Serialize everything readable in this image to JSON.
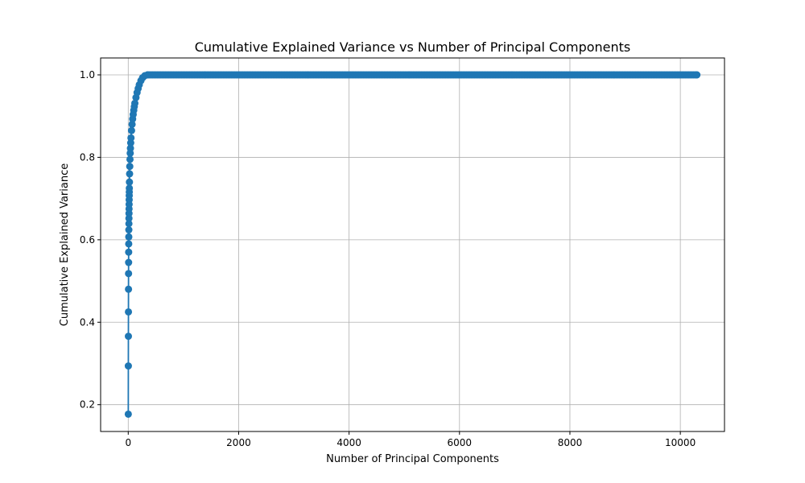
{
  "chart_data": {
    "type": "line",
    "title": "Cumulative Explained Variance vs Number of Principal Components",
    "xlabel": "Number of Principal Components",
    "ylabel": "Cumulative Explained Variance",
    "xlim": [
      -500,
      10800
    ],
    "ylim": [
      0.135,
      1.041
    ],
    "xticks": [
      0,
      2000,
      4000,
      6000,
      8000,
      10000
    ],
    "yticks": [
      0.2,
      0.4,
      0.6,
      0.8,
      1.0
    ],
    "grid": true,
    "legend": "none",
    "series": [
      {
        "color": "#1f77b4",
        "marker": "circle",
        "x": [
          1,
          2,
          3,
          4,
          5,
          6,
          7,
          8,
          9,
          10,
          11,
          12,
          13,
          14,
          15,
          16,
          17,
          18,
          19,
          20,
          22,
          25,
          28,
          32,
          36,
          40,
          45,
          50,
          60,
          70,
          80,
          90,
          100,
          110,
          120,
          140,
          160,
          180,
          200,
          230,
          260,
          300,
          350,
          10300
        ],
        "y": [
          0.177,
          0.294,
          0.366,
          0.425,
          0.48,
          0.518,
          0.545,
          0.57,
          0.59,
          0.607,
          0.624,
          0.639,
          0.652,
          0.664,
          0.675,
          0.686,
          0.697,
          0.707,
          0.716,
          0.725,
          0.74,
          0.76,
          0.778,
          0.795,
          0.81,
          0.822,
          0.835,
          0.847,
          0.865,
          0.88,
          0.893,
          0.904,
          0.914,
          0.923,
          0.931,
          0.945,
          0.957,
          0.967,
          0.976,
          0.986,
          0.993,
          0.998,
          1.0,
          1.0
        ]
      }
    ]
  }
}
